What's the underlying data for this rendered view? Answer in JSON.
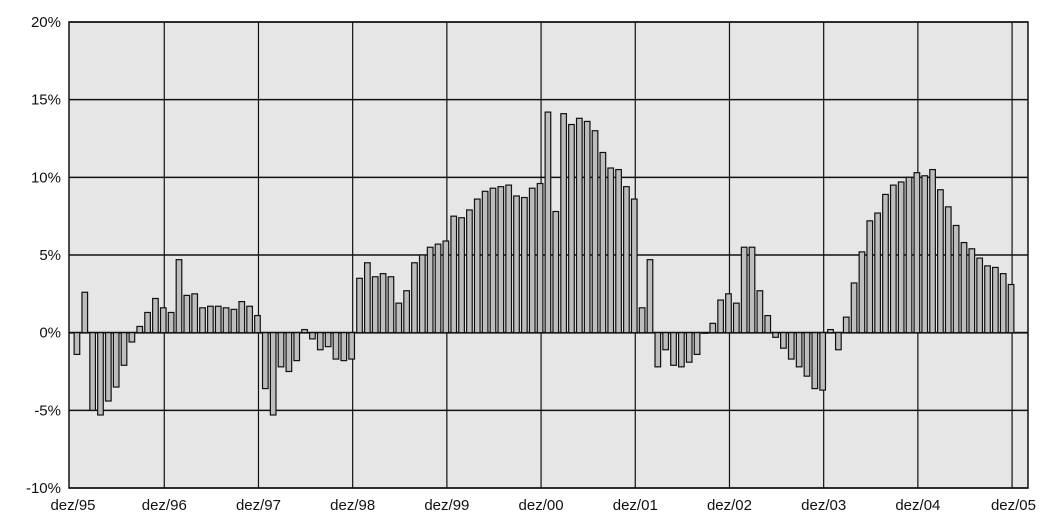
{
  "chart_data": {
    "type": "bar",
    "title": "",
    "xlabel": "",
    "ylabel": "",
    "ylim": [
      -10,
      20
    ],
    "y_ticks": [
      -10,
      -5,
      0,
      5,
      10,
      15,
      20
    ],
    "y_tick_labels": [
      "-10%",
      "-5%",
      "0%",
      "5%",
      "10%",
      "15%",
      "20%"
    ],
    "x_tick_labels": [
      "dez/95",
      "dez/96",
      "dez/97",
      "dez/98",
      "dez/99",
      "dez/00",
      "dez/01",
      "dez/02",
      "dez/03",
      "dez/04",
      "dez/05"
    ],
    "x_tick_month_index": [
      0,
      12,
      24,
      36,
      48,
      60,
      72,
      84,
      96,
      108,
      120
    ],
    "grid": true,
    "colors": {
      "plot_background": "#e6e6e6",
      "bar_fill": "#bdbdbd",
      "bar_stroke": "#111111",
      "grid": "#111111"
    },
    "months_from_dez95": [
      1,
      2,
      3,
      4,
      5,
      6,
      7,
      8,
      9,
      10,
      11,
      12,
      13,
      14,
      15,
      16,
      17,
      18,
      19,
      20,
      21,
      22,
      23,
      24,
      25,
      26,
      27,
      28,
      29,
      30,
      31,
      32,
      33,
      34,
      35,
      36,
      37,
      38,
      39,
      40,
      41,
      42,
      43,
      44,
      45,
      46,
      47,
      48,
      49,
      50,
      51,
      52,
      53,
      54,
      55,
      56,
      57,
      58,
      59,
      60,
      61,
      62,
      63,
      64,
      65,
      66,
      67,
      68,
      69,
      70,
      71,
      72,
      73,
      74,
      75,
      76,
      77,
      78,
      79,
      80,
      81,
      82,
      83,
      84,
      85,
      86,
      87,
      88,
      89,
      90,
      91,
      92,
      93,
      94,
      95,
      96,
      97,
      98,
      99,
      100,
      101,
      102,
      103,
      104,
      105,
      106,
      107,
      108,
      109,
      110,
      111,
      112,
      113,
      114,
      115,
      116,
      117,
      118,
      119,
      120
    ],
    "values": [
      -1.4,
      2.6,
      -5.0,
      -5.3,
      -4.4,
      -3.5,
      -2.1,
      -0.6,
      0.4,
      1.3,
      2.2,
      1.6,
      1.3,
      4.7,
      2.4,
      2.5,
      1.6,
      1.7,
      1.7,
      1.6,
      1.5,
      2.0,
      1.7,
      1.1,
      -3.6,
      -5.3,
      -2.2,
      -2.5,
      -1.8,
      0.2,
      -0.4,
      -1.1,
      -0.9,
      -1.7,
      -1.8,
      -1.7,
      3.5,
      4.5,
      3.6,
      3.8,
      3.6,
      1.9,
      2.7,
      4.5,
      5.0,
      5.5,
      5.7,
      5.9,
      7.5,
      7.4,
      7.9,
      8.6,
      9.1,
      9.3,
      9.4,
      9.5,
      8.8,
      8.7,
      9.3,
      9.6,
      14.2,
      7.8,
      14.1,
      13.4,
      13.8,
      13.6,
      13.0,
      11.6,
      10.6,
      10.5,
      9.4,
      8.6,
      1.6,
      4.7,
      -2.2,
      -1.1,
      -2.1,
      -2.2,
      -1.9,
      -1.4,
      0.0,
      0.6,
      2.1,
      2.5,
      1.9,
      5.5,
      5.5,
      2.7,
      1.1,
      -0.3,
      -1.0,
      -1.7,
      -2.2,
      -2.8,
      -3.6,
      -3.7,
      0.2,
      -1.1,
      1.0,
      3.2,
      5.2,
      7.2,
      7.7,
      8.9,
      9.5,
      9.7,
      10.0,
      10.3,
      10.1,
      10.5,
      9.2,
      8.1,
      6.9,
      5.8,
      5.4,
      4.8,
      4.3,
      4.2,
      3.8,
      3.1
    ]
  }
}
